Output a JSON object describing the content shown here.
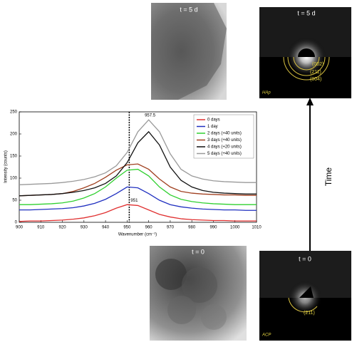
{
  "chart_data": {
    "type": "line",
    "x_label": "Wavenumber (cm⁻¹)",
    "y_label": "Intensity (counts)",
    "x": [
      900,
      905,
      910,
      915,
      920,
      925,
      930,
      935,
      940,
      945,
      950,
      955,
      960,
      965,
      970,
      975,
      980,
      985,
      990,
      995,
      1000,
      1005,
      1010
    ],
    "series": [
      {
        "name": "0 days",
        "color": "#e03030",
        "values": [
          2,
          3,
          3,
          4,
          5,
          7,
          10,
          15,
          22,
          32,
          40,
          38,
          28,
          18,
          12,
          8,
          6,
          5,
          4,
          4,
          3,
          3,
          3
        ]
      },
      {
        "name": "1 day",
        "color": "#2030c0",
        "values": [
          28,
          28,
          29,
          30,
          31,
          33,
          37,
          43,
          52,
          65,
          80,
          78,
          65,
          50,
          40,
          35,
          32,
          30,
          29,
          28,
          28,
          27,
          27
        ]
      },
      {
        "name": "2 days (+40 units)",
        "color": "#30d030",
        "values": [
          40,
          40,
          41,
          42,
          44,
          48,
          55,
          65,
          80,
          100,
          118,
          120,
          105,
          80,
          62,
          52,
          47,
          44,
          42,
          41,
          40,
          40,
          40
        ]
      },
      {
        "name": "3 days (+40 units)",
        "color": "#a04020",
        "values": [
          60,
          61,
          62,
          63,
          65,
          70,
          78,
          88,
          102,
          118,
          130,
          132,
          120,
          98,
          80,
          70,
          66,
          64,
          63,
          62,
          62,
          61,
          61
        ]
      },
      {
        "name": "4 days (+20 units)",
        "color": "#111111",
        "values": [
          60,
          61,
          62,
          63,
          65,
          68,
          72,
          78,
          88,
          105,
          135,
          180,
          205,
          175,
          125,
          95,
          80,
          72,
          68,
          66,
          65,
          64,
          64
        ]
      },
      {
        "name": "5 days (+40 units)",
        "color": "#9a9a9a",
        "values": [
          85,
          86,
          87,
          88,
          90,
          93,
          97,
          103,
          112,
          128,
          158,
          205,
          232,
          205,
          155,
          120,
          105,
          98,
          94,
          92,
          91,
          90,
          90
        ]
      }
    ],
    "xlim": [
      900,
      1010
    ],
    "xticks": [
      900,
      910,
      920,
      930,
      940,
      950,
      960,
      970,
      980,
      990,
      1000,
      1010
    ],
    "ylim": [
      0,
      250
    ],
    "yticks": [
      0,
      50,
      100,
      150,
      200,
      250
    ],
    "reference_x": 951,
    "annotations": [
      {
        "label": "957.5",
        "x": 957.5,
        "y": 232
      },
      {
        "label": "951",
        "x": 951,
        "y": 40
      }
    ],
    "legend": "upper right"
  },
  "panels": {
    "tem_5d": {
      "label": "t = 5 d"
    },
    "saed_5d": {
      "label": "t = 5 d",
      "rings": [
        "(002)",
        "(211)",
        "(004)"
      ],
      "phase": "HAp"
    },
    "tem_0": {
      "label": "t = 0"
    },
    "saed_0": {
      "label": "t = 0",
      "rings": [
        "(211)"
      ],
      "phase": "ACP"
    },
    "arrow_label": "Time"
  }
}
